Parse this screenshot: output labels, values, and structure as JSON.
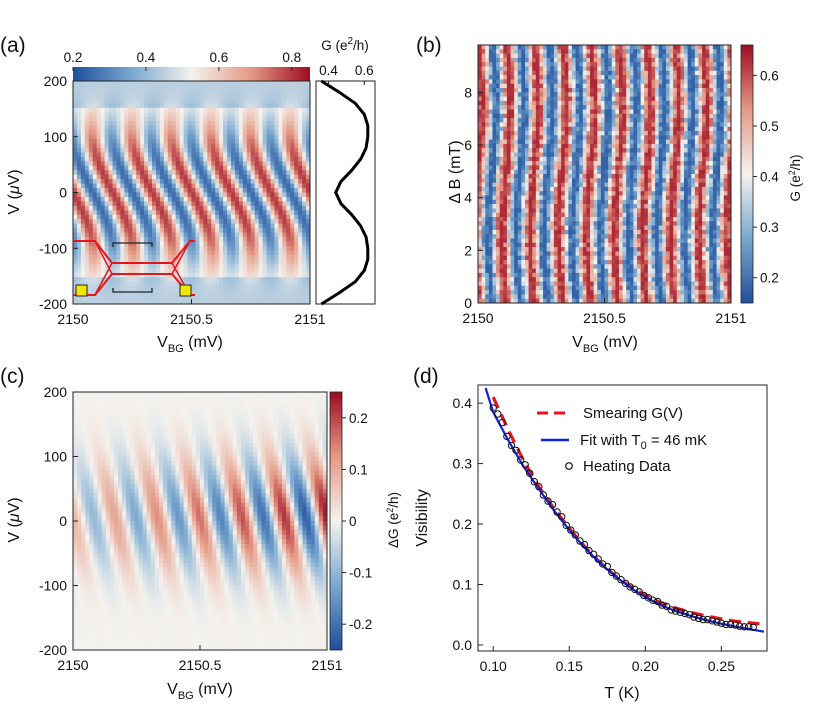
{
  "figure": {
    "panels": [
      "(a)",
      "(b)",
      "(c)",
      "(d)"
    ]
  },
  "colormap": {
    "low": "#1f4f9c",
    "mid_low": "#7aa8cf",
    "mid": "#f4f2ee",
    "mid_high": "#e49a86",
    "high": "#9e0b22"
  },
  "chart_data": [
    {
      "id": "a",
      "type": "heatmap",
      "label": "(a)",
      "xlabel": "V",
      "xlabel_sub": "BG",
      "xlabel_unit": " (mV)",
      "ylabel": "V (μV)",
      "xlim": [
        2150,
        2151
      ],
      "ylim": [
        -200,
        200
      ],
      "xticks": [
        "2150",
        "2150.5",
        "2151"
      ],
      "xtick_values": [
        2150,
        2150.5,
        2151
      ],
      "yticks": [
        "200",
        "100",
        "0",
        "-100",
        "-200"
      ],
      "ytick_values": [
        200,
        100,
        0,
        -100,
        -200
      ],
      "colorbar": {
        "orientation": "horizontal",
        "range": [
          0.2,
          0.85
        ],
        "ticks": [
          "0.2",
          "0.4",
          "0.6",
          "0.8"
        ],
        "tick_values": [
          0.2,
          0.4,
          0.6,
          0.8
        ]
      },
      "side_panel": {
        "title": "G (e2/h)",
        "title_text": "G (e",
        "title_sup": "2",
        "title_tail": "/h)",
        "xticks": [
          "0.4",
          "0.6"
        ],
        "xtick_values": [
          0.4,
          0.6
        ],
        "xlim": [
          0.33,
          0.66
        ],
        "profile_V": [
          -200,
          -180,
          -160,
          -140,
          -120,
          -100,
          -80,
          -60,
          -40,
          -20,
          0,
          20,
          40,
          60,
          80,
          100,
          120,
          140,
          160,
          180,
          200
        ],
        "profile_G": [
          0.36,
          0.46,
          0.55,
          0.6,
          0.62,
          0.62,
          0.61,
          0.58,
          0.53,
          0.47,
          0.44,
          0.47,
          0.53,
          0.58,
          0.61,
          0.62,
          0.62,
          0.6,
          0.55,
          0.46,
          0.36
        ]
      },
      "fringe_period_mV": 0.167
    },
    {
      "id": "b",
      "type": "heatmap",
      "label": "(b)",
      "xlabel": "V",
      "xlabel_sub": "BG",
      "xlabel_unit": " (mV)",
      "ylabel": "Δ B (mT)",
      "xlim": [
        2150,
        2151
      ],
      "ylim": [
        0,
        9.8
      ],
      "xticks": [
        "2150",
        "2150.5",
        "2151"
      ],
      "xtick_values": [
        2150,
        2150.5,
        2151
      ],
      "yticks": [
        "0",
        "2",
        "4",
        "6",
        "8"
      ],
      "ytick_values": [
        0,
        2,
        4,
        6,
        8
      ],
      "colorbar": {
        "orientation": "vertical",
        "range": [
          0.15,
          0.66
        ],
        "ticks": [
          "0.2",
          "0.3",
          "0.4",
          "0.5",
          "0.6"
        ],
        "tick_values": [
          0.2,
          0.3,
          0.4,
          0.5,
          0.6
        ],
        "label": "G (e2/h)"
      },
      "fringe_period_mV": 0.111
    },
    {
      "id": "c",
      "type": "heatmap",
      "label": "(c)",
      "xlabel": "V",
      "xlabel_sub": "BG",
      "xlabel_unit": " (mV)",
      "ylabel": "V (μV)",
      "xlim": [
        2150,
        2151
      ],
      "ylim": [
        -200,
        200
      ],
      "xticks": [
        "2150",
        "2150.5",
        "2151"
      ],
      "xtick_values": [
        2150,
        2150.5,
        2151
      ],
      "yticks": [
        "200",
        "100",
        "0",
        "-100",
        "-200"
      ],
      "ytick_values": [
        200,
        100,
        0,
        -100,
        -200
      ],
      "colorbar": {
        "orientation": "vertical",
        "range": [
          -0.25,
          0.25
        ],
        "ticks": [
          "0.2",
          "0.1",
          "0",
          "-0.1",
          "-0.2"
        ],
        "tick_values": [
          0.2,
          0.1,
          0,
          -0.1,
          -0.2
        ],
        "label": "ΔG (e2/h)"
      },
      "fringe_period_mV": 0.167
    },
    {
      "id": "d",
      "type": "line",
      "label": "(d)",
      "xlabel": "T (K)",
      "ylabel": "Visibility",
      "xlim": [
        0.09,
        0.28
      ],
      "ylim": [
        -0.01,
        0.43
      ],
      "xticks": [
        "0.10",
        "0.15",
        "0.20",
        "0.25"
      ],
      "xtick_values": [
        0.1,
        0.15,
        0.2,
        0.25
      ],
      "yticks": [
        "0.4",
        "0.3",
        "0.2",
        "0.1",
        "0.0"
      ],
      "ytick_values": [
        0.4,
        0.3,
        0.2,
        0.1,
        0.0
      ],
      "series": [
        {
          "name": "Smearing G(V)",
          "style": "dashed",
          "color": "#e8141b",
          "x": [
            0.1,
            0.11,
            0.12,
            0.13,
            0.14,
            0.15,
            0.16,
            0.17,
            0.18,
            0.19,
            0.2,
            0.21,
            0.22,
            0.23,
            0.24,
            0.25,
            0.26,
            0.275
          ],
          "y": [
            0.41,
            0.355,
            0.305,
            0.262,
            0.225,
            0.193,
            0.163,
            0.137,
            0.115,
            0.097,
            0.082,
            0.07,
            0.061,
            0.054,
            0.048,
            0.043,
            0.039,
            0.035
          ]
        },
        {
          "name": "Fit with T0 = 46 mK",
          "name_main": "Fit with T",
          "name_sub": "0",
          "name_tail": " = 46 mK",
          "style": "solid",
          "color": "#1220e0",
          "x": [
            0.095,
            0.1,
            0.11,
            0.12,
            0.13,
            0.14,
            0.15,
            0.16,
            0.17,
            0.18,
            0.19,
            0.2,
            0.21,
            0.22,
            0.23,
            0.24,
            0.25,
            0.26,
            0.278
          ],
          "y": [
            0.425,
            0.385,
            0.338,
            0.295,
            0.258,
            0.222,
            0.19,
            0.161,
            0.136,
            0.114,
            0.095,
            0.079,
            0.066,
            0.056,
            0.048,
            0.041,
            0.035,
            0.03,
            0.022
          ]
        },
        {
          "name": "Heating Data",
          "style": "markers",
          "color": "#111111",
          "x": [
            0.1,
            0.103,
            0.106,
            0.109,
            0.112,
            0.115,
            0.118,
            0.121,
            0.124,
            0.127,
            0.13,
            0.133,
            0.136,
            0.139,
            0.142,
            0.145,
            0.148,
            0.151,
            0.154,
            0.157,
            0.16,
            0.163,
            0.166,
            0.169,
            0.172,
            0.175,
            0.178,
            0.181,
            0.184,
            0.187,
            0.19,
            0.193,
            0.196,
            0.199,
            0.202,
            0.205,
            0.208,
            0.211,
            0.214,
            0.217,
            0.22,
            0.223,
            0.226,
            0.229,
            0.232,
            0.235,
            0.238,
            0.241,
            0.244,
            0.247,
            0.25,
            0.253,
            0.256,
            0.259,
            0.262,
            0.265,
            0.268,
            0.271
          ],
          "y": [
            0.392,
            0.382,
            0.368,
            0.345,
            0.33,
            0.322,
            0.306,
            0.298,
            0.284,
            0.27,
            0.262,
            0.248,
            0.238,
            0.232,
            0.22,
            0.212,
            0.198,
            0.19,
            0.182,
            0.172,
            0.166,
            0.156,
            0.15,
            0.142,
            0.134,
            0.13,
            0.12,
            0.114,
            0.108,
            0.102,
            0.096,
            0.092,
            0.088,
            0.082,
            0.078,
            0.074,
            0.072,
            0.066,
            0.064,
            0.058,
            0.056,
            0.054,
            0.052,
            0.05,
            0.046,
            0.044,
            0.042,
            0.042,
            0.04,
            0.038,
            0.036,
            0.034,
            0.034,
            0.033,
            0.031,
            0.03,
            0.03,
            0.029
          ]
        }
      ]
    }
  ]
}
